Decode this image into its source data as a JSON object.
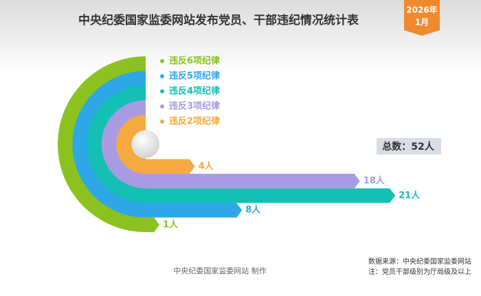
{
  "chart_data": {
    "type": "ringbar",
    "title": "中央纪委国家监委网站发布党员、干部违纪情况统计表",
    "badge_year": "2026年",
    "badge_month": "1月",
    "categories": [
      "违反6项纪律",
      "违反5项纪律",
      "违反4项纪律",
      "违反3项纪律",
      "违反2项纪律"
    ],
    "values": [
      1,
      8,
      21,
      18,
      4
    ],
    "value_labels": [
      "1人",
      "8人",
      "21人",
      "18人",
      "4人"
    ],
    "colors": [
      "#8cc21f",
      "#2ea7e6",
      "#14bfb4",
      "#a99be3",
      "#f5a93f"
    ],
    "total": "总数：52人",
    "credit": "中央纪委国家监委网站 制作",
    "source": "数据来源：中央纪委国家监委网站",
    "note": "注：党员干部级别为厅局级及以上"
  }
}
